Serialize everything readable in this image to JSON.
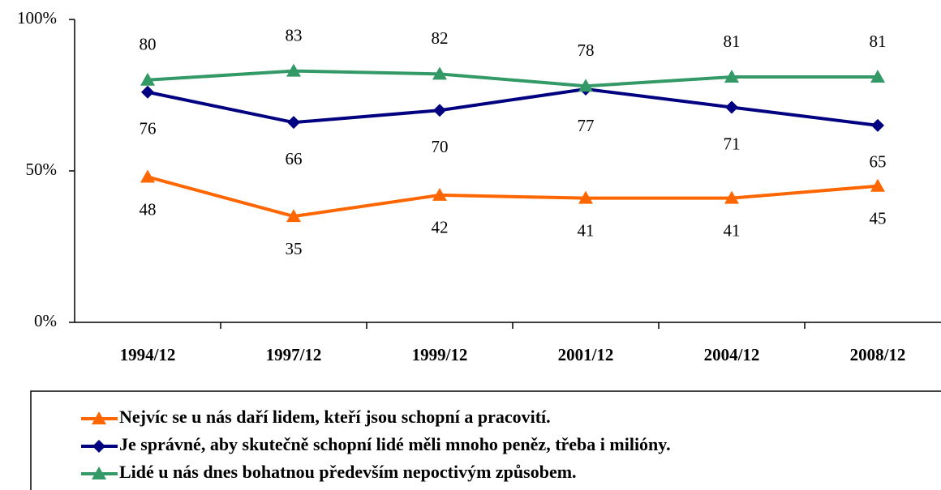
{
  "chart_data": {
    "type": "line",
    "categories": [
      "1994/12",
      "1997/12",
      "1999/12",
      "2001/12",
      "2004/12",
      "2008/12"
    ],
    "series": [
      {
        "name": "Nejvíc se u nás daří lidem, kteří jsou schopní a pracovití.",
        "color": "#ff6600",
        "marker": "triangle",
        "values": [
          48,
          35,
          42,
          41,
          41,
          45
        ]
      },
      {
        "name": "Je správné, aby skutečně schopní lidé měli mnoho peněz, třeba i milióny.",
        "color": "#000080",
        "marker": "diamond",
        "values": [
          76,
          66,
          70,
          77,
          71,
          65
        ]
      },
      {
        "name": "Lidé u nás dnes bohatnou především nepoctivým způsobem.",
        "color": "#339966",
        "marker": "triangle",
        "values": [
          80,
          83,
          82,
          78,
          81,
          81
        ]
      }
    ],
    "ylim": [
      0,
      100
    ],
    "yticks": [
      {
        "value": 0,
        "label": "0%"
      },
      {
        "value": 50,
        "label": "50%"
      },
      {
        "value": 100,
        "label": "100%"
      }
    ],
    "grid": false,
    "legend": "bottom"
  }
}
